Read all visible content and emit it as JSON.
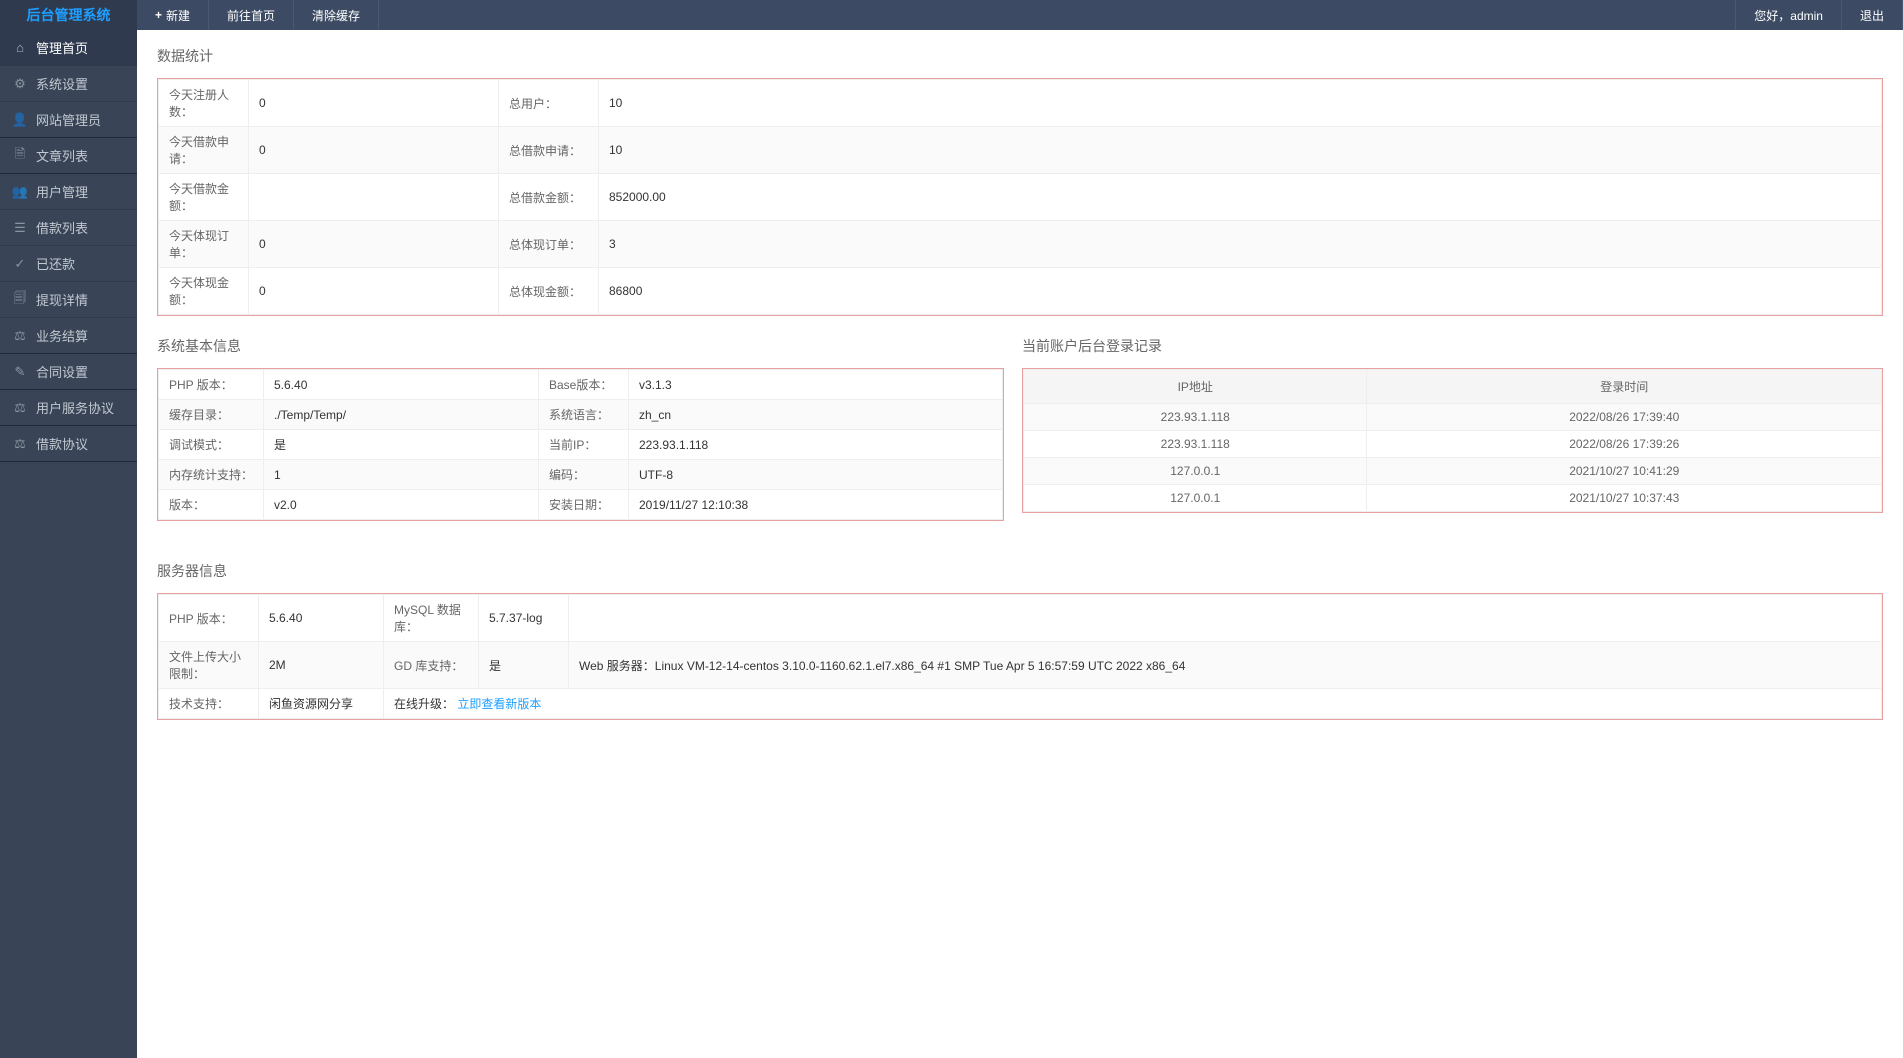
{
  "header": {
    "logo": "后台管理系统",
    "new_btn": "新建",
    "goto_home": "前往首页",
    "clear_cache": "清除缓存",
    "greeting": "您好，admin",
    "logout": "退出"
  },
  "sidebar": {
    "items": [
      {
        "icon": "home",
        "label": "管理首页",
        "active": true,
        "group_end": false
      },
      {
        "icon": "gear",
        "label": "系统设置",
        "active": false,
        "group_end": false
      },
      {
        "icon": "user",
        "label": "网站管理员",
        "active": false,
        "group_end": true
      },
      {
        "icon": "doc",
        "label": "文章列表",
        "active": false,
        "group_end": true
      },
      {
        "icon": "users",
        "label": "用户管理",
        "active": false,
        "group_end": false
      },
      {
        "icon": "list",
        "label": "借款列表",
        "active": false,
        "group_end": false
      },
      {
        "icon": "check",
        "label": "已还款",
        "active": false,
        "group_end": false
      },
      {
        "icon": "detail",
        "label": "提现详情",
        "active": false,
        "group_end": false
      },
      {
        "icon": "calc",
        "label": "业务结算",
        "active": false,
        "group_end": true
      },
      {
        "icon": "contract",
        "label": "合同设置",
        "active": false,
        "group_end": true
      },
      {
        "icon": "agree",
        "label": "用户服务协议",
        "active": false,
        "group_end": true
      },
      {
        "icon": "loan",
        "label": "借款协议",
        "active": false,
        "group_end": true
      }
    ]
  },
  "sections": {
    "stats_title": "数据统计",
    "sysinfo_title": "系统基本信息",
    "login_title": "当前账户后台登录记录",
    "server_title": "服务器信息"
  },
  "stats": {
    "rows": [
      {
        "l1": "今天注册人数：",
        "v1": "0",
        "l2": "总用户：",
        "v2": "10"
      },
      {
        "l1": "今天借款申请：",
        "v1": "0",
        "l2": "总借款申请：",
        "v2": "10"
      },
      {
        "l1": "今天借款金额：",
        "v1": "",
        "l2": "总借款金额：",
        "v2": "852000.00"
      },
      {
        "l1": "今天体现订单：",
        "v1": "0",
        "l2": "总体现订单：",
        "v2": "3"
      },
      {
        "l1": "今天体现金额：",
        "v1": "0",
        "l2": "总体现金额：",
        "v2": "86800"
      }
    ]
  },
  "sysinfo": {
    "rows": [
      {
        "l1": "PHP 版本：",
        "v1": "5.6.40",
        "l2": "Base版本：",
        "v2": "v3.1.3"
      },
      {
        "l1": "缓存目录：",
        "v1": "./Temp/Temp/",
        "l2": "系统语言：",
        "v2": "zh_cn"
      },
      {
        "l1": "调试模式：",
        "v1": "是",
        "l2": "当前IP：",
        "v2": "223.93.1.118"
      },
      {
        "l1": "内存统计支持：",
        "v1": "1",
        "l2": "编码：",
        "v2": "UTF-8"
      },
      {
        "l1": "版本：",
        "v1": "v2.0",
        "l2": "安装日期：",
        "v2": "2019/11/27 12:10:38"
      }
    ]
  },
  "login_log": {
    "col_ip": "IP地址",
    "col_time": "登录时间",
    "rows": [
      {
        "ip": "223.93.1.118",
        "time": "2022/08/26 17:39:40"
      },
      {
        "ip": "223.93.1.118",
        "time": "2022/08/26 17:39:26"
      },
      {
        "ip": "127.0.0.1",
        "time": "2021/10/27 10:41:29"
      },
      {
        "ip": "127.0.0.1",
        "time": "2021/10/27 10:37:43"
      }
    ]
  },
  "server": {
    "r1": {
      "l1": "PHP 版本：",
      "v1": "5.6.40",
      "l2": "MySQL 数据库：",
      "v2": "5.7.37-log",
      "l3": ""
    },
    "r2": {
      "l1": "文件上传大小限制：",
      "v1": "2M",
      "l2": "GD 库支持：",
      "v2": "是",
      "l3": "Web 服务器：Linux VM-12-14-centos 3.10.0-1160.62.1.el7.x86_64 #1 SMP Tue Apr 5 16:57:59 UTC 2022 x86_64"
    },
    "r3": {
      "l1": "技术支持：",
      "v1": "闲鱼资源网分享",
      "l2_pre": "在线升级：",
      "l2_link": "立即查看新版本"
    }
  },
  "colors": {
    "header_bg": "#3c4b63",
    "logo_bg": "#2f3a4f",
    "accent": "#1e9fff",
    "sidebar_bg": "#394557",
    "panel_border": "#e8a0a0"
  }
}
